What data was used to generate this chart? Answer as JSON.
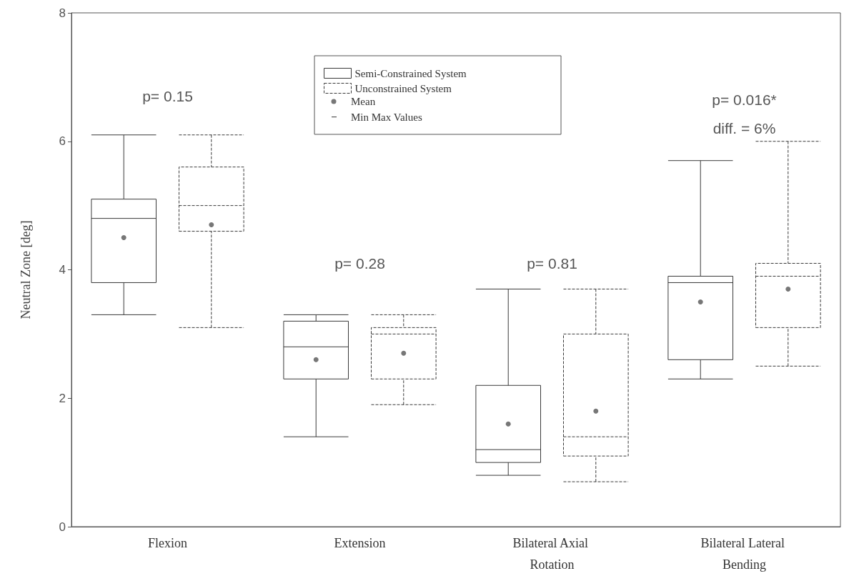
{
  "chart_data": {
    "type": "box",
    "ylabel": "Neutral Zone [deg]",
    "categories": [
      "Flexion",
      "Extension",
      "Bilateral Axial Rotation",
      "Bilateral Lateral Bending"
    ],
    "ylim": [
      0,
      8
    ],
    "yticks": [
      0,
      2,
      4,
      6,
      8
    ],
    "legend": "top",
    "grid": false,
    "marker": "circle",
    "series": [
      {
        "name": "Semi-Constrained System",
        "color": "#3a3a3a",
        "line_style": "solid",
        "boxes": [
          {
            "low": 3.3,
            "q1": 3.8,
            "median": 4.8,
            "q3": 5.1,
            "high": 6.1,
            "mean": 4.5
          },
          {
            "low": 1.4,
            "q1": 2.3,
            "median": 2.8,
            "q3": 3.2,
            "high": 3.3,
            "mean": 2.6
          },
          {
            "low": 0.8,
            "q1": 1.0,
            "median": 1.2,
            "q3": 2.2,
            "high": 3.7,
            "mean": 1.6
          },
          {
            "low": 2.3,
            "q1": 2.6,
            "median": 3.8,
            "q3": 3.9,
            "high": 5.7,
            "mean": 3.5
          }
        ]
      },
      {
        "name": "Unconstrained System",
        "color": "#3a3a3a",
        "line_style": "dashed",
        "boxes": [
          {
            "low": 3.1,
            "q1": 4.6,
            "median": 5.0,
            "q3": 5.6,
            "high": 6.1,
            "mean": 4.7
          },
          {
            "low": 1.9,
            "q1": 2.3,
            "median": 3.0,
            "q3": 3.1,
            "high": 3.3,
            "mean": 2.7
          },
          {
            "low": 0.7,
            "q1": 1.1,
            "median": 1.4,
            "q3": 3.0,
            "high": 3.7,
            "mean": 1.8
          },
          {
            "low": 2.5,
            "q1": 3.1,
            "median": 3.9,
            "q3": 4.1,
            "high": 6.0,
            "mean": 3.7
          }
        ]
      }
    ],
    "annotations": [
      "Mean",
      "Min Max Values",
      "p= 0.15",
      "p= 0.28",
      "p= 0.81",
      "p= 0.016*",
      "diff. = 6%"
    ]
  }
}
